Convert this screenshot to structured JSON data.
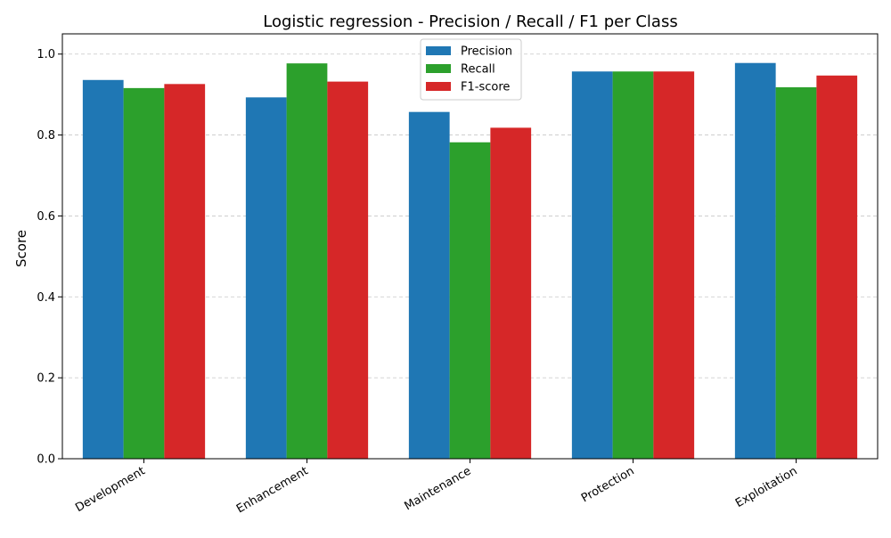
{
  "chart_data": {
    "type": "bar",
    "title": "Logistic regression - Precision / Recall / F1 per Class",
    "xlabel": "",
    "ylabel": "Score",
    "ylim": [
      0,
      1.05
    ],
    "yticks": [
      "0.0",
      "0.2",
      "0.4",
      "0.6",
      "0.8",
      "1.0"
    ],
    "grid": "y-dashed",
    "legend_position": "top-center",
    "categories": [
      "Development",
      "Enhancement",
      "Maintenance",
      "Protection",
      "Exploitation"
    ],
    "series": [
      {
        "name": "Precision",
        "color": "#1f77b4",
        "values": [
          0.936,
          0.893,
          0.857,
          0.957,
          0.978
        ]
      },
      {
        "name": "Recall",
        "color": "#2ca02c",
        "values": [
          0.916,
          0.977,
          0.782,
          0.957,
          0.918
        ]
      },
      {
        "name": "F1-score",
        "color": "#d62728",
        "values": [
          0.926,
          0.932,
          0.818,
          0.957,
          0.947
        ]
      }
    ]
  }
}
